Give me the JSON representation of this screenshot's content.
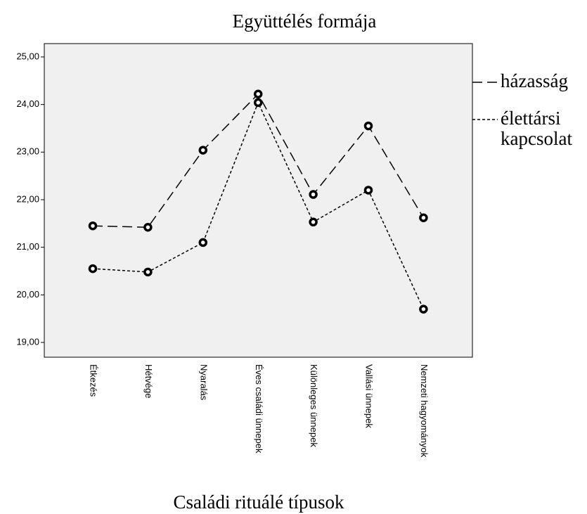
{
  "chart_data": {
    "type": "line",
    "title": "Együttélés formája",
    "x_label": "Családi rituálé típusok",
    "categories": [
      "Étkezés",
      "Hétvége",
      "Nyaralás",
      "Éves családi ünnepek",
      "Különleges ünnepek",
      "Vallási ünnepek",
      "Nemzeti hagyományok"
    ],
    "series": [
      {
        "name": "házasság",
        "color": "#000000",
        "dash": "14,7",
        "values": [
          21.45,
          21.42,
          23.04,
          24.22,
          22.11,
          23.55,
          21.62
        ]
      },
      {
        "name": "élettársi kapcsolat",
        "color": "#000000",
        "dash": "4,3",
        "values": [
          20.55,
          20.48,
          21.1,
          24.04,
          21.53,
          22.2,
          19.7
        ]
      }
    ],
    "ylim": [
      18.69,
      25.28
    ],
    "yticks": [
      {
        "value": 19,
        "label": "19,00"
      },
      {
        "value": 20,
        "label": "20,00"
      },
      {
        "value": 21,
        "label": "21,00"
      },
      {
        "value": 22,
        "label": "22,00"
      },
      {
        "value": 23,
        "label": "23,00"
      },
      {
        "value": 24,
        "label": "24,00"
      },
      {
        "value": 25,
        "label": "25,00"
      }
    ],
    "legend": "right"
  }
}
